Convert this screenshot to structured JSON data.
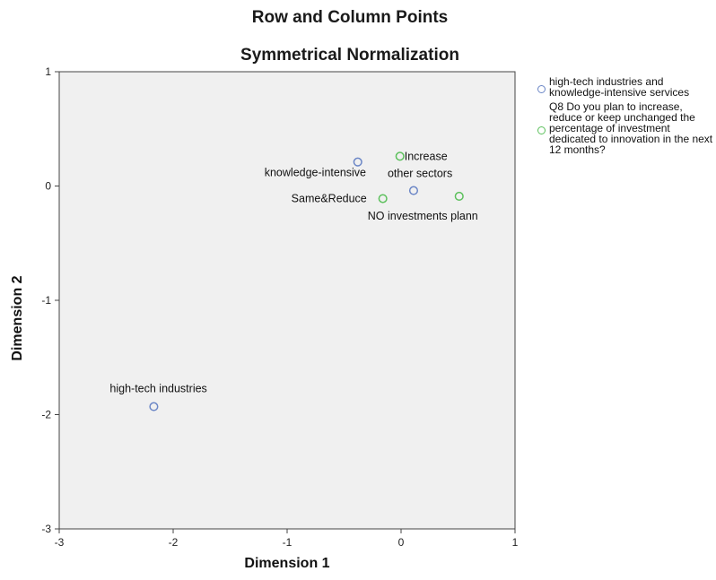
{
  "chart_data": {
    "type": "scatter",
    "title": "Row and Column Points",
    "subtitle": "Symmetrical Normalization",
    "xlabel": "Dimension 1",
    "ylabel": "Dimension 2",
    "xlim": [
      -3,
      1
    ],
    "ylim": [
      -3,
      1
    ],
    "xticks": [
      -3,
      -2,
      -1,
      0,
      1
    ],
    "yticks": [
      -3,
      -2,
      -1,
      0,
      1
    ],
    "grid": false,
    "legend_placement": "right",
    "series": [
      {
        "name": "high-tech industries and knowledge-intensive services",
        "color": "#6b86c6",
        "points": [
          {
            "label": "knowledge-intensive",
            "x": -0.38,
            "y": 0.21
          },
          {
            "label": "other sectors",
            "x": 0.11,
            "y": -0.04
          },
          {
            "label": "high-tech industries",
            "x": -2.17,
            "y": -1.93
          }
        ]
      },
      {
        "name": "Q8 Do you plan to increase, reduce or keep unchanged the percentage of investment dedicated to innovation in the next 12 months?",
        "color": "#5cc05c",
        "points": [
          {
            "label": "Increase",
            "x": -0.01,
            "y": 0.26
          },
          {
            "label": "Same&Reduce",
            "x": -0.16,
            "y": -0.11
          },
          {
            "label": "NO investments plann",
            "x": 0.51,
            "y": -0.09
          }
        ]
      }
    ]
  }
}
